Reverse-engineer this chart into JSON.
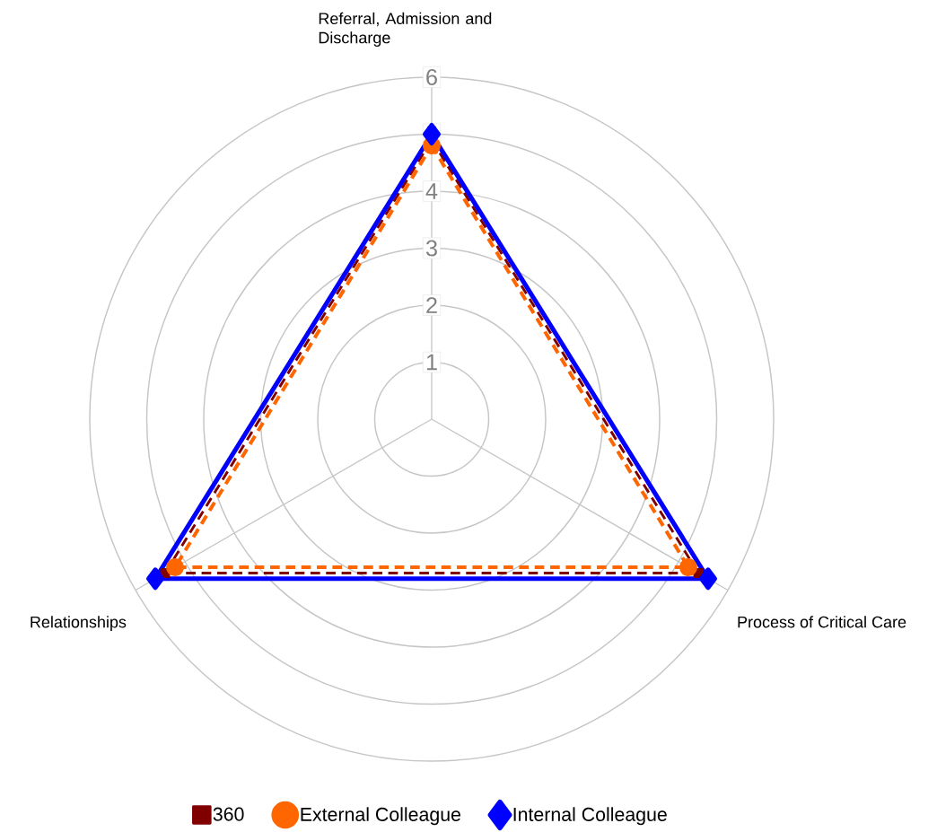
{
  "chart_data": {
    "type": "radar",
    "categories": [
      "Referral, Admission and Discharge",
      "Process of Critical Care",
      "Relationships"
    ],
    "ylim": [
      0,
      6
    ],
    "yticks": [
      1,
      2,
      3,
      4,
      5,
      6
    ],
    "grid": true,
    "legend": "bottom",
    "series": [
      {
        "name": "Internal Colleague",
        "color": "#0000ff",
        "values": [
          5.0,
          5.6,
          5.6
        ],
        "marker": "diamond",
        "line_style": "solid"
      },
      {
        "name": "External Colleague",
        "color": "#ff6600",
        "values": [
          4.8,
          5.2,
          5.2
        ],
        "marker": "circle",
        "line_style": "dashed"
      },
      {
        "name": "360",
        "color": "#800000",
        "values": [
          4.9,
          5.4,
          5.4
        ],
        "marker": "square",
        "line_style": "dashed"
      }
    ]
  }
}
